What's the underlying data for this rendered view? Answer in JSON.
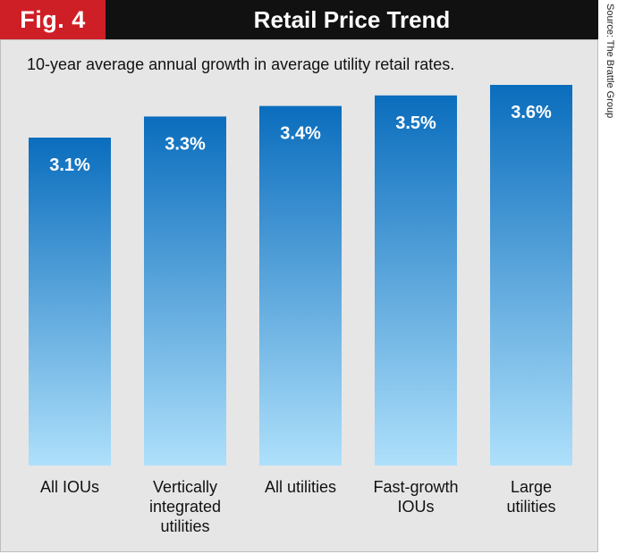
{
  "figure": {
    "label": "Fig. 4",
    "title": "Retail Price Trend"
  },
  "source": "Source: The Brattle Group",
  "chart_data": {
    "type": "bar",
    "title": "Retail Price Trend",
    "subtitle": "10-year average annual growth in average utility retail rates.",
    "categories": [
      "All IOUs",
      "Vertically integrated utilities",
      "All utilities",
      "Fast-growth IOUs",
      "Large utilities"
    ],
    "category_lines": [
      [
        "All IOUs"
      ],
      [
        "Vertically",
        "integrated",
        "utilities"
      ],
      [
        "All utilities"
      ],
      [
        "Fast-growth",
        "IOUs"
      ],
      [
        "Large",
        "utilities"
      ]
    ],
    "values": [
      3.1,
      3.3,
      3.4,
      3.5,
      3.6
    ],
    "labels": [
      "3.1%",
      "3.3%",
      "3.4%",
      "3.5%",
      "3.6%"
    ],
    "ylabel": "%",
    "ylim": [
      0,
      3.6
    ],
    "colors": {
      "bar_top": "#0a6dbd",
      "bar_bottom": "#aee0fb"
    }
  }
}
